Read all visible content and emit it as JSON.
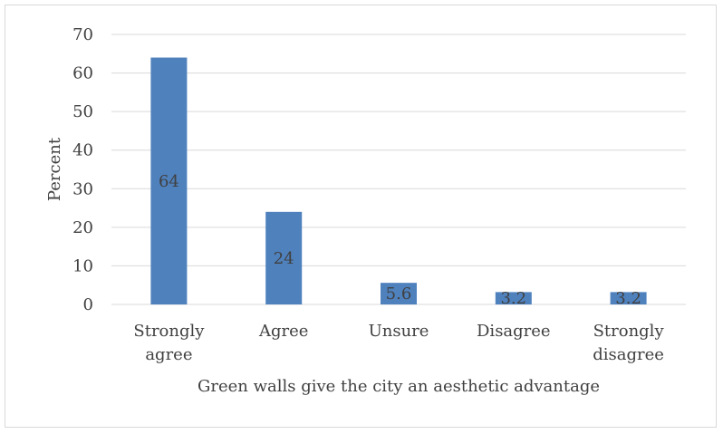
{
  "chart_data": {
    "type": "bar",
    "categories": [
      [
        "Strongly",
        "agree"
      ],
      [
        "Agree"
      ],
      [
        "Unsure"
      ],
      [
        "Disagree"
      ],
      [
        "Strongly",
        "disagree"
      ]
    ],
    "values": [
      64,
      24,
      5.6,
      3.2,
      3.2
    ],
    "data_labels": [
      "64",
      "24",
      "5.6",
      "3.2",
      "3.2"
    ],
    "title": "",
    "xlabel": "Green walls give the city an aesthetic advantage",
    "ylabel": "Percent",
    "ylim": [
      0,
      70
    ],
    "yticks": [
      0,
      10,
      20,
      30,
      40,
      50,
      60,
      70
    ],
    "grid": true,
    "legend": "none",
    "colors": {
      "bar": "#4f81bd",
      "grid": "#d9d9d9",
      "text": "#404040"
    }
  }
}
